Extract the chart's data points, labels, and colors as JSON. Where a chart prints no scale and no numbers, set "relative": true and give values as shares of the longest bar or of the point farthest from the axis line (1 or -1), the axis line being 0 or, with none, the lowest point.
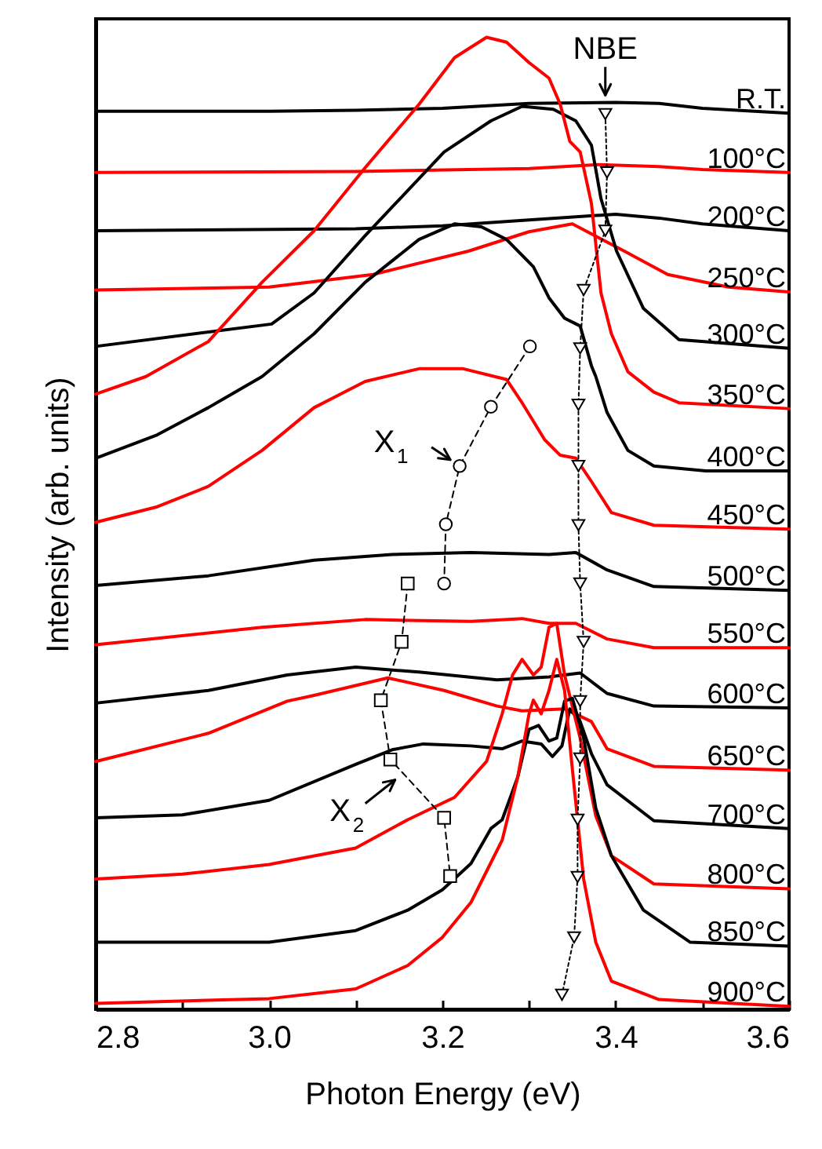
{
  "chart_data": {
    "type": "line",
    "relative": true,
    "xlabel": "Photon Energy (eV)",
    "ylabel": "Intensity (arb. units)",
    "xlim": [
      2.8,
      3.6
    ],
    "xticks": [
      {
        "value": 2.8,
        "label": "2.8"
      },
      {
        "value": 2.9,
        "label": null
      },
      {
        "value": 3.0,
        "label": "3.0"
      },
      {
        "value": 3.1,
        "label": null
      },
      {
        "value": 3.2,
        "label": "3.2"
      },
      {
        "value": 3.3,
        "label": null
      },
      {
        "value": 3.4,
        "label": "3.4"
      },
      {
        "value": 3.5,
        "label": null
      },
      {
        "value": 3.6,
        "label": "3.6"
      }
    ],
    "grid": false,
    "series": [
      {
        "name": "R.T.",
        "color": "#000000",
        "x": [
          2.8,
          3.0,
          3.1,
          3.2,
          3.3,
          3.4,
          3.45,
          3.5,
          3.6
        ],
        "values": [
          0.924,
          0.924,
          0.925,
          0.927,
          0.932,
          0.933,
          0.932,
          0.927,
          0.922
        ]
      },
      {
        "name": "100°C",
        "color": "#ff0000",
        "x": [
          2.8,
          3.1,
          3.3,
          3.38,
          3.45,
          3.5,
          3.6
        ],
        "values": [
          0.861,
          0.862,
          0.865,
          0.869,
          0.867,
          0.864,
          0.861
        ]
      },
      {
        "name": "200°C",
        "color": "#000000",
        "x": [
          2.8,
          3.1,
          3.2,
          3.3,
          3.4,
          3.45,
          3.5,
          3.6
        ],
        "values": [
          0.801,
          0.803,
          0.806,
          0.812,
          0.818,
          0.814,
          0.808,
          0.801
        ]
      },
      {
        "name": "250°C",
        "color": "#ff0000",
        "x": [
          2.8,
          3.0,
          3.12,
          3.23,
          3.3,
          3.35,
          3.41,
          3.46,
          3.53,
          3.6
        ],
        "values": [
          0.74,
          0.743,
          0.756,
          0.78,
          0.8,
          0.808,
          0.78,
          0.756,
          0.743,
          0.738
        ]
      },
      {
        "name": "300°C",
        "color": "#000000",
        "x": [
          2.8,
          3.003,
          3.052,
          3.111,
          3.202,
          3.256,
          3.292,
          3.328,
          3.354,
          3.372,
          3.383,
          3.401,
          3.432,
          3.473,
          3.6
        ],
        "values": [
          0.682,
          0.705,
          0.737,
          0.796,
          0.882,
          0.914,
          0.929,
          0.926,
          0.914,
          0.889,
          0.834,
          0.78,
          0.721,
          0.689,
          0.68
        ]
      },
      {
        "name": "350°C",
        "color": "#ff0000",
        "x": [
          2.8,
          2.858,
          2.93,
          2.992,
          3.052,
          3.111,
          3.173,
          3.214,
          3.251,
          3.274,
          3.3,
          3.323,
          3.336,
          3.347,
          3.359,
          3.372,
          3.383,
          3.395,
          3.414,
          3.444,
          3.473,
          3.6
        ],
        "values": [
          0.633,
          0.651,
          0.687,
          0.748,
          0.801,
          0.866,
          0.931,
          0.979,
          1.0,
          0.995,
          0.974,
          0.958,
          0.931,
          0.893,
          0.882,
          0.829,
          0.737,
          0.695,
          0.656,
          0.635,
          0.624,
          0.618
        ]
      },
      {
        "name": "400°C",
        "color": "#000000",
        "x": [
          2.8,
          2.871,
          2.93,
          2.992,
          3.052,
          3.111,
          3.173,
          3.214,
          3.245,
          3.274,
          3.305,
          3.323,
          3.341,
          3.359,
          3.372,
          3.377,
          3.39,
          3.414,
          3.444,
          3.504,
          3.6
        ],
        "values": [
          0.567,
          0.591,
          0.619,
          0.651,
          0.695,
          0.748,
          0.792,
          0.808,
          0.805,
          0.792,
          0.764,
          0.732,
          0.711,
          0.703,
          0.662,
          0.651,
          0.614,
          0.575,
          0.559,
          0.554,
          0.554
        ]
      },
      {
        "name": "450°C",
        "color": "#ff0000",
        "x": [
          2.8,
          2.871,
          2.93,
          2.992,
          3.052,
          3.111,
          3.173,
          3.224,
          3.274,
          3.292,
          3.318,
          3.336,
          3.354,
          3.372,
          3.395,
          3.444,
          3.6
        ],
        "values": [
          0.501,
          0.517,
          0.538,
          0.575,
          0.619,
          0.646,
          0.659,
          0.659,
          0.648,
          0.624,
          0.586,
          0.57,
          0.567,
          0.543,
          0.511,
          0.498,
          0.494
        ]
      },
      {
        "name": "500°C",
        "color": "#000000",
        "x": [
          2.8,
          2.93,
          3.052,
          3.142,
          3.233,
          3.323,
          3.354,
          3.39,
          3.444,
          3.6
        ],
        "values": [
          0.436,
          0.446,
          0.462,
          0.468,
          0.47,
          0.468,
          0.47,
          0.452,
          0.435,
          0.431
        ]
      },
      {
        "name": "550°C",
        "color": "#ff0000",
        "x": [
          2.8,
          2.992,
          3.111,
          3.233,
          3.292,
          3.323,
          3.354,
          3.39,
          3.444,
          3.6
        ],
        "values": [
          0.375,
          0.393,
          0.401,
          0.399,
          0.402,
          0.397,
          0.397,
          0.381,
          0.372,
          0.372
        ]
      },
      {
        "name": "600°C",
        "color": "#000000",
        "x": [
          2.8,
          2.93,
          3.021,
          3.1,
          3.173,
          3.263,
          3.323,
          3.359,
          3.39,
          3.444,
          3.6
        ],
        "values": [
          0.315,
          0.328,
          0.344,
          0.352,
          0.347,
          0.339,
          0.342,
          0.346,
          0.325,
          0.312,
          0.31
        ]
      },
      {
        "name": "650°C",
        "color": "#ff0000",
        "x": [
          2.8,
          2.93,
          3.021,
          3.052,
          3.137,
          3.202,
          3.263,
          3.292,
          3.341,
          3.372,
          3.39,
          3.444,
          3.6
        ],
        "values": [
          0.255,
          0.284,
          0.317,
          0.323,
          0.341,
          0.328,
          0.312,
          0.307,
          0.309,
          0.296,
          0.268,
          0.25,
          0.246
        ]
      },
      {
        "name": "700°C",
        "color": "#000000",
        "x": [
          2.8,
          2.9,
          3.0,
          3.1,
          3.142,
          3.178,
          3.233,
          3.269,
          3.292,
          3.314,
          3.327,
          3.338,
          3.347,
          3.359,
          3.372,
          3.39,
          3.444,
          3.6
        ],
        "values": [
          0.197,
          0.2,
          0.215,
          0.252,
          0.267,
          0.273,
          0.271,
          0.268,
          0.276,
          0.273,
          0.26,
          0.271,
          0.309,
          0.296,
          0.263,
          0.231,
          0.194,
          0.186
        ]
      },
      {
        "name": "800°C",
        "color": "#ff0000",
        "x": [
          2.8,
          2.9,
          3.0,
          3.1,
          3.16,
          3.214,
          3.251,
          3.269,
          3.281,
          3.292,
          3.305,
          3.314,
          3.323,
          3.332,
          3.341,
          3.359,
          3.377,
          3.395,
          3.444,
          3.6
        ],
        "values": [
          0.134,
          0.139,
          0.149,
          0.166,
          0.195,
          0.218,
          0.255,
          0.304,
          0.344,
          0.36,
          0.344,
          0.352,
          0.393,
          0.397,
          0.344,
          0.279,
          0.199,
          0.158,
          0.129,
          0.124
        ]
      },
      {
        "name": "850°C",
        "color": "#000000",
        "x": [
          2.8,
          3.0,
          3.1,
          3.16,
          3.2,
          3.233,
          3.256,
          3.269,
          3.287,
          3.3,
          3.311,
          3.323,
          3.332,
          3.341,
          3.35,
          3.363,
          3.377,
          3.395,
          3.432,
          3.486,
          3.6
        ],
        "values": [
          0.069,
          0.069,
          0.081,
          0.102,
          0.123,
          0.15,
          0.186,
          0.195,
          0.239,
          0.288,
          0.292,
          0.276,
          0.279,
          0.317,
          0.32,
          0.279,
          0.207,
          0.158,
          0.102,
          0.069,
          0.065
        ]
      },
      {
        "name": "900°C",
        "color": "#ff0000",
        "x": [
          2.8,
          3.0,
          3.1,
          3.16,
          3.2,
          3.233,
          3.269,
          3.287,
          3.3,
          3.305,
          3.314,
          3.323,
          3.332,
          3.341,
          3.35,
          3.363,
          3.377,
          3.395,
          3.45,
          3.6
        ],
        "values": [
          0.006,
          0.011,
          0.021,
          0.045,
          0.074,
          0.11,
          0.174,
          0.239,
          0.304,
          0.318,
          0.304,
          0.328,
          0.36,
          0.328,
          0.247,
          0.134,
          0.069,
          0.029,
          0.01,
          0.003
        ]
      },
      {
        "type": "line",
        "color": "#000000",
        "marker": "triangle",
        "line_style": "dotted",
        "x": [
          3.388,
          3.39,
          3.388,
          3.363,
          3.359,
          3.357,
          3.357,
          3.357,
          3.359,
          3.363,
          3.359,
          3.359,
          3.356,
          3.356,
          3.352,
          3.338
        ],
        "values": [
          0.921,
          0.861,
          0.801,
          0.74,
          0.68,
          0.622,
          0.559,
          0.498,
          0.438,
          0.378,
          0.317,
          0.258,
          0.195,
          0.136,
          0.074,
          0.015
        ]
      },
      {
        "type": "line",
        "color": "#000000",
        "marker": "circle",
        "line_style": "dashed",
        "x": [
          3.301,
          3.256,
          3.22,
          3.204,
          3.202
        ],
        "values": [
          0.682,
          0.62,
          0.559,
          0.499,
          0.438
        ]
      },
      {
        "type": "line",
        "color": "#000000",
        "marker": "square",
        "line_style": "dashed",
        "x": [
          3.16,
          3.153,
          3.129,
          3.14,
          3.202,
          3.209
        ],
        "values": [
          0.438,
          0.378,
          0.318,
          0.257,
          0.197,
          0.137
        ]
      }
    ],
    "annotations": [
      {
        "text": "NBE",
        "x": 3.388,
        "y": 0.934
      },
      {
        "text": "X$_{1}$",
        "x": 3.22,
        "y": 0.559
      },
      {
        "text": "X$_{2}$",
        "x": 3.14,
        "y": 0.257
      }
    ]
  }
}
